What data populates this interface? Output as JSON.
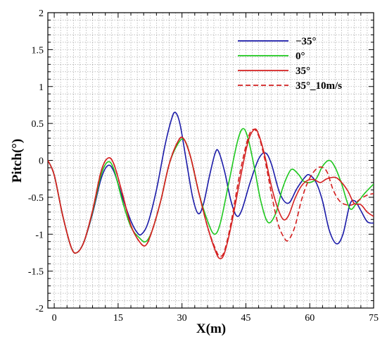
{
  "chart_data": {
    "type": "line",
    "title": "",
    "xlabel": "X(m)",
    "ylabel": "Pitch(°)",
    "xlim": [
      -1.5,
      75
    ],
    "ylim": [
      -2,
      2
    ],
    "x_ticks": [
      0,
      15,
      30,
      45,
      60,
      75
    ],
    "y_ticks": [
      -2,
      -1.5,
      -1,
      -0.5,
      0,
      0.5,
      1,
      1.5,
      2
    ],
    "x_tick_labels": [
      "0",
      "15",
      "30",
      "45",
      "60",
      "75"
    ],
    "y_tick_labels": [
      "-2",
      "-1.5",
      "-1",
      "-0.5",
      "0",
      "0.5",
      "1",
      "1.5",
      "2"
    ],
    "grid": true,
    "grid_style": "dotted",
    "legend_position": "top-right",
    "series": [
      {
        "name": "−35°",
        "color": "#1a1aa8",
        "dash": "solid",
        "points": [
          [
            -1.5,
            0
          ],
          [
            0,
            -0.2
          ],
          [
            2,
            -0.75
          ],
          [
            4,
            -1.18
          ],
          [
            5.3,
            -1.25
          ],
          [
            7,
            -1.1
          ],
          [
            9,
            -0.72
          ],
          [
            11,
            -0.25
          ],
          [
            12.6,
            -0.07
          ],
          [
            14,
            -0.15
          ],
          [
            16,
            -0.5
          ],
          [
            18,
            -0.82
          ],
          [
            19.5,
            -0.98
          ],
          [
            20.5,
            -1.0
          ],
          [
            22,
            -0.85
          ],
          [
            24,
            -0.4
          ],
          [
            26,
            0.2
          ],
          [
            27.5,
            0.55
          ],
          [
            28.4,
            0.65
          ],
          [
            29.5,
            0.5
          ],
          [
            31,
            0.0
          ],
          [
            32.5,
            -0.5
          ],
          [
            33.8,
            -0.72
          ],
          [
            35,
            -0.6
          ],
          [
            36.5,
            -0.2
          ],
          [
            37.8,
            0.1
          ],
          [
            38.6,
            0.12
          ],
          [
            40,
            -0.15
          ],
          [
            41.5,
            -0.55
          ],
          [
            42.8,
            -0.75
          ],
          [
            44,
            -0.68
          ],
          [
            46,
            -0.3
          ],
          [
            48,
            0.02
          ],
          [
            49.6,
            0.1
          ],
          [
            51,
            -0.05
          ],
          [
            53,
            -0.45
          ],
          [
            55,
            -0.58
          ],
          [
            57,
            -0.38
          ],
          [
            59,
            -0.22
          ],
          [
            60,
            -0.2
          ],
          [
            61.5,
            -0.3
          ],
          [
            63,
            -0.55
          ],
          [
            64.6,
            -0.95
          ],
          [
            66.3,
            -1.13
          ],
          [
            67.8,
            -1.0
          ],
          [
            69.4,
            -0.6
          ],
          [
            70.6,
            -0.55
          ],
          [
            72,
            -0.68
          ],
          [
            73.5,
            -0.83
          ],
          [
            75,
            -0.85
          ]
        ]
      },
      {
        "name": "0°",
        "color": "#1ec81e",
        "dash": "solid",
        "points": [
          [
            -1.5,
            0
          ],
          [
            0,
            -0.2
          ],
          [
            2,
            -0.75
          ],
          [
            4,
            -1.18
          ],
          [
            5.3,
            -1.25
          ],
          [
            7,
            -1.1
          ],
          [
            9,
            -0.7
          ],
          [
            11,
            -0.2
          ],
          [
            12.6,
            -0.02
          ],
          [
            14,
            -0.12
          ],
          [
            16,
            -0.55
          ],
          [
            18,
            -0.9
          ],
          [
            20,
            -1.05
          ],
          [
            21.5,
            -1.1
          ],
          [
            23,
            -0.95
          ],
          [
            25,
            -0.55
          ],
          [
            27,
            -0.05
          ],
          [
            29,
            0.22
          ],
          [
            30.5,
            0.28
          ],
          [
            32,
            0.05
          ],
          [
            34,
            -0.45
          ],
          [
            36,
            -0.82
          ],
          [
            37.6,
            -1.0
          ],
          [
            39,
            -0.85
          ],
          [
            41,
            -0.3
          ],
          [
            43,
            0.25
          ],
          [
            44.3,
            0.43
          ],
          [
            45.5,
            0.3
          ],
          [
            47,
            -0.1
          ],
          [
            48.5,
            -0.55
          ],
          [
            50.2,
            -0.84
          ],
          [
            52,
            -0.72
          ],
          [
            53.5,
            -0.4
          ],
          [
            55,
            -0.18
          ],
          [
            56,
            -0.12
          ],
          [
            57.5,
            -0.2
          ],
          [
            58.5,
            -0.28
          ],
          [
            60,
            -0.3
          ],
          [
            61.5,
            -0.25
          ],
          [
            63,
            -0.08
          ],
          [
            64.6,
            0.0
          ],
          [
            66,
            -0.1
          ],
          [
            67.5,
            -0.32
          ],
          [
            69.4,
            -0.65
          ],
          [
            71,
            -0.58
          ],
          [
            73,
            -0.44
          ],
          [
            75,
            -0.32
          ]
        ]
      },
      {
        "name": "35°",
        "color": "#d42020",
        "dash": "solid",
        "points": [
          [
            -1.5,
            0
          ],
          [
            0,
            -0.2
          ],
          [
            2,
            -0.75
          ],
          [
            4,
            -1.18
          ],
          [
            5.3,
            -1.25
          ],
          [
            7,
            -1.1
          ],
          [
            9,
            -0.68
          ],
          [
            11,
            -0.15
          ],
          [
            12.6,
            0.03
          ],
          [
            14,
            -0.05
          ],
          [
            16,
            -0.45
          ],
          [
            18,
            -0.88
          ],
          [
            20,
            -1.1
          ],
          [
            21.5,
            -1.15
          ],
          [
            23,
            -0.95
          ],
          [
            25,
            -0.55
          ],
          [
            27,
            -0.05
          ],
          [
            29,
            0.25
          ],
          [
            30.3,
            0.3
          ],
          [
            32,
            0.05
          ],
          [
            34,
            -0.45
          ],
          [
            36,
            -0.9
          ],
          [
            38,
            -1.25
          ],
          [
            39,
            -1.33
          ],
          [
            40,
            -1.25
          ],
          [
            41.5,
            -0.9
          ],
          [
            43.5,
            -0.3
          ],
          [
            45.5,
            0.25
          ],
          [
            47,
            0.42
          ],
          [
            48,
            0.35
          ],
          [
            49.5,
            0.05
          ],
          [
            51,
            -0.35
          ],
          [
            52.5,
            -0.65
          ],
          [
            53.8,
            -0.8
          ],
          [
            55,
            -0.75
          ],
          [
            56.5,
            -0.52
          ],
          [
            58,
            -0.35
          ],
          [
            59.5,
            -0.27
          ],
          [
            61,
            -0.26
          ],
          [
            62.5,
            -0.3
          ],
          [
            64,
            -0.25
          ],
          [
            66,
            -0.23
          ],
          [
            67.5,
            -0.3
          ],
          [
            69,
            -0.42
          ],
          [
            70.4,
            -0.58
          ],
          [
            72,
            -0.6
          ],
          [
            73.5,
            -0.7
          ],
          [
            75,
            -0.76
          ]
        ]
      },
      {
        "name": "35°_10m/s",
        "color": "#d42020",
        "dash": "dashed",
        "points": [
          [
            -1.5,
            0
          ],
          [
            0,
            -0.2
          ],
          [
            2,
            -0.75
          ],
          [
            4,
            -1.18
          ],
          [
            5.3,
            -1.25
          ],
          [
            7,
            -1.1
          ],
          [
            9,
            -0.68
          ],
          [
            11,
            -0.15
          ],
          [
            12.6,
            0.03
          ],
          [
            14,
            -0.05
          ],
          [
            16,
            -0.45
          ],
          [
            18,
            -0.88
          ],
          [
            20,
            -1.1
          ],
          [
            21.5,
            -1.15
          ],
          [
            23,
            -0.95
          ],
          [
            25,
            -0.55
          ],
          [
            27,
            -0.05
          ],
          [
            29,
            0.25
          ],
          [
            30.3,
            0.3
          ],
          [
            32,
            0.05
          ],
          [
            34,
            -0.45
          ],
          [
            36,
            -0.9
          ],
          [
            38,
            -1.22
          ],
          [
            39,
            -1.3
          ],
          [
            40,
            -1.22
          ],
          [
            41.5,
            -0.85
          ],
          [
            43.5,
            -0.2
          ],
          [
            45.5,
            0.3
          ],
          [
            46.8,
            0.42
          ],
          [
            48,
            0.33
          ],
          [
            49.5,
            0.0
          ],
          [
            51,
            -0.45
          ],
          [
            52.5,
            -0.85
          ],
          [
            54,
            -1.05
          ],
          [
            55,
            -1.08
          ],
          [
            56.5,
            -0.9
          ],
          [
            58,
            -0.55
          ],
          [
            59.5,
            -0.3
          ],
          [
            61,
            -0.15
          ],
          [
            62.5,
            -0.09
          ],
          [
            64,
            -0.15
          ],
          [
            65.5,
            -0.4
          ],
          [
            67,
            -0.55
          ],
          [
            68.5,
            -0.6
          ],
          [
            70,
            -0.6
          ],
          [
            72,
            -0.52
          ],
          [
            73.5,
            -0.47
          ],
          [
            75,
            -0.45
          ]
        ]
      }
    ]
  }
}
